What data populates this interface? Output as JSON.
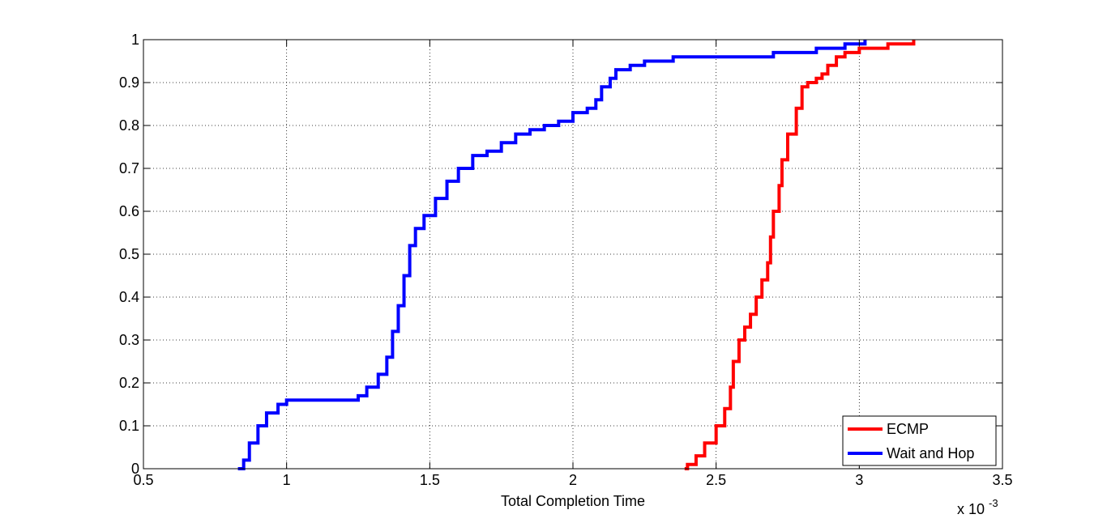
{
  "chart_data": {
    "type": "line",
    "title": "",
    "xlabel": "Total Completion Time",
    "ylabel": "",
    "x_exponent_label": "x 10",
    "x_exponent_power": "-3",
    "xlim": [
      0.5,
      3.5
    ],
    "ylim": [
      0,
      1
    ],
    "x_ticks": [
      0.5,
      1,
      1.5,
      2,
      2.5,
      3,
      3.5
    ],
    "x_tick_labels": [
      "0.5",
      "1",
      "1.5",
      "2",
      "2.5",
      "3",
      "3.5"
    ],
    "y_ticks": [
      0,
      0.1,
      0.2,
      0.3,
      0.4,
      0.5,
      0.6,
      0.7,
      0.8,
      0.9,
      1
    ],
    "y_tick_labels": [
      "0",
      "0.1",
      "0.2",
      "0.3",
      "0.4",
      "0.5",
      "0.6",
      "0.7",
      "0.8",
      "0.9",
      "1"
    ],
    "grid": true,
    "legend_position": "bottom-right",
    "series": [
      {
        "name": "ECMP",
        "color": "#ff0000",
        "x": [
          2.39,
          2.4,
          2.43,
          2.46,
          2.5,
          2.53,
          2.55,
          2.56,
          2.58,
          2.6,
          2.62,
          2.64,
          2.66,
          2.68,
          2.69,
          2.7,
          2.72,
          2.73,
          2.75,
          2.78,
          2.8,
          2.82,
          2.85,
          2.87,
          2.89,
          2.92,
          2.95,
          3.0,
          3.1,
          3.19
        ],
        "y": [
          0.0,
          0.01,
          0.03,
          0.06,
          0.1,
          0.14,
          0.19,
          0.25,
          0.3,
          0.33,
          0.36,
          0.4,
          0.44,
          0.48,
          0.54,
          0.6,
          0.66,
          0.72,
          0.78,
          0.84,
          0.89,
          0.9,
          0.91,
          0.92,
          0.94,
          0.96,
          0.97,
          0.98,
          0.99,
          1.0
        ]
      },
      {
        "name": "Wait and Hop",
        "color": "#0000ff",
        "x": [
          0.83,
          0.85,
          0.87,
          0.9,
          0.93,
          0.97,
          1.0,
          1.05,
          1.1,
          1.2,
          1.25,
          1.28,
          1.32,
          1.35,
          1.37,
          1.39,
          1.41,
          1.43,
          1.45,
          1.48,
          1.52,
          1.56,
          1.6,
          1.65,
          1.7,
          1.75,
          1.8,
          1.85,
          1.9,
          1.95,
          2.0,
          2.05,
          2.08,
          2.1,
          2.13,
          2.15,
          2.2,
          2.25,
          2.35,
          2.5,
          2.7,
          2.85,
          2.95,
          3.02
        ],
        "y": [
          0.0,
          0.02,
          0.06,
          0.1,
          0.13,
          0.15,
          0.16,
          0.16,
          0.16,
          0.16,
          0.17,
          0.19,
          0.22,
          0.26,
          0.32,
          0.38,
          0.45,
          0.52,
          0.56,
          0.59,
          0.63,
          0.67,
          0.7,
          0.73,
          0.74,
          0.76,
          0.78,
          0.79,
          0.8,
          0.81,
          0.83,
          0.84,
          0.86,
          0.89,
          0.91,
          0.93,
          0.94,
          0.95,
          0.96,
          0.96,
          0.97,
          0.98,
          0.99,
          1.0
        ]
      }
    ]
  }
}
